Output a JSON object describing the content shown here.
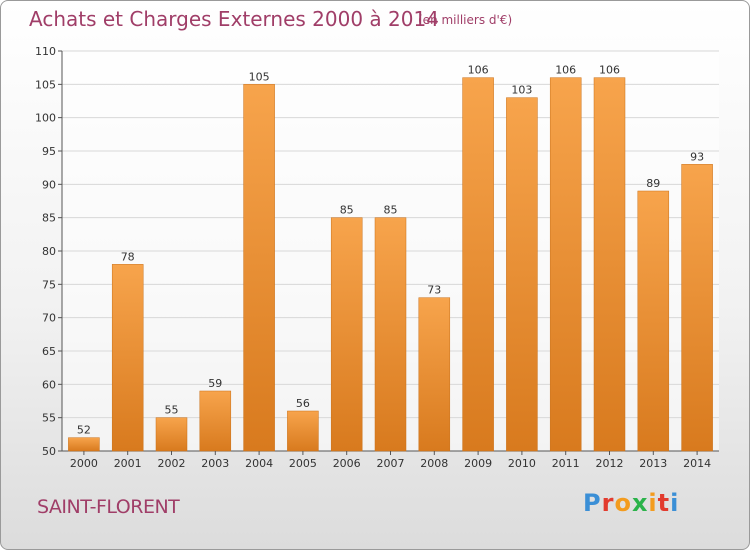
{
  "header": {
    "title": "Achats et Charges Externes 2000 à 2014",
    "unit": "(en milliers d'€)"
  },
  "footer": {
    "commune": "SAINT-FLORENT",
    "logo_letters": [
      "P",
      "r",
      "o",
      "x",
      "i",
      "t",
      "i"
    ],
    "logo_colors": [
      "#3b8fd6",
      "#e23b2e",
      "#f39c1f",
      "#2bb34a",
      "#f39c1f",
      "#e23b2e",
      "#3b8fd6"
    ]
  },
  "colors": {
    "bar_top": "#f7a44c",
    "bar_bottom": "#d87a1e",
    "text": "#a03e68",
    "grid": "#d8d8d8"
  },
  "chart_data": {
    "type": "bar",
    "categories": [
      "2000",
      "2001",
      "2002",
      "2003",
      "2004",
      "2005",
      "2006",
      "2007",
      "2008",
      "2009",
      "2010",
      "2011",
      "2012",
      "2013",
      "2014"
    ],
    "values": [
      52,
      78,
      55,
      59,
      105,
      56,
      85,
      85,
      73,
      106,
      103,
      106,
      106,
      89,
      93
    ],
    "ylim": [
      50,
      110
    ],
    "yticks": [
      50,
      55,
      60,
      65,
      70,
      75,
      80,
      85,
      90,
      95,
      100,
      105,
      110
    ],
    "grid": true,
    "xlabel": "",
    "ylabel": ""
  }
}
